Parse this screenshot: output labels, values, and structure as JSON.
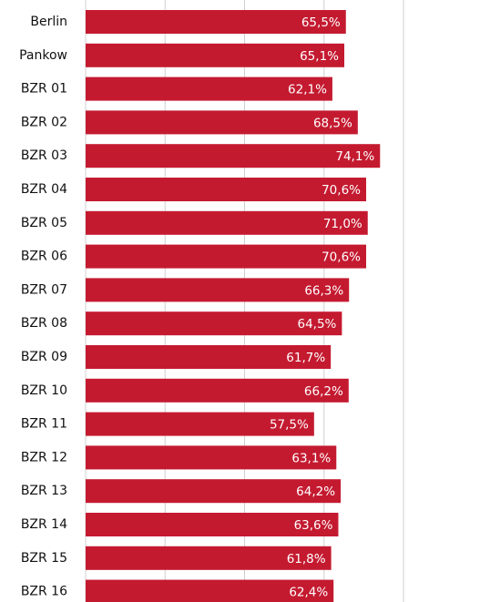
{
  "chart_data": {
    "type": "bar",
    "orientation": "horizontal",
    "categories": [
      "Berlin",
      "Pankow",
      "BZR 01",
      "BZR 02",
      "BZR 03",
      "BZR 04",
      "BZR 05",
      "BZR 06",
      "BZR 07",
      "BZR 08",
      "BZR 09",
      "BZR 10",
      "BZR 11",
      "BZR 12",
      "BZR 13",
      "BZR 14",
      "BZR 15",
      "BZR 16"
    ],
    "values": [
      65.5,
      65.1,
      62.1,
      68.5,
      74.1,
      70.6,
      71.0,
      70.6,
      66.3,
      64.5,
      61.7,
      66.2,
      57.5,
      63.1,
      64.2,
      63.6,
      61.8,
      62.4
    ],
    "value_labels": [
      "65,5%",
      "65,1%",
      "62,1%",
      "68,5%",
      "74,1%",
      "70,6%",
      "71,0%",
      "70,6%",
      "66,3%",
      "64,5%",
      "61,7%",
      "66,2%",
      "57,5%",
      "63,1%",
      "64,2%",
      "63,6%",
      "61,8%",
      "62,4%"
    ],
    "color": "#c41a30",
    "xlim": [
      0,
      80
    ],
    "xticks": [
      0,
      20,
      40,
      60,
      80
    ],
    "grid": true
  }
}
